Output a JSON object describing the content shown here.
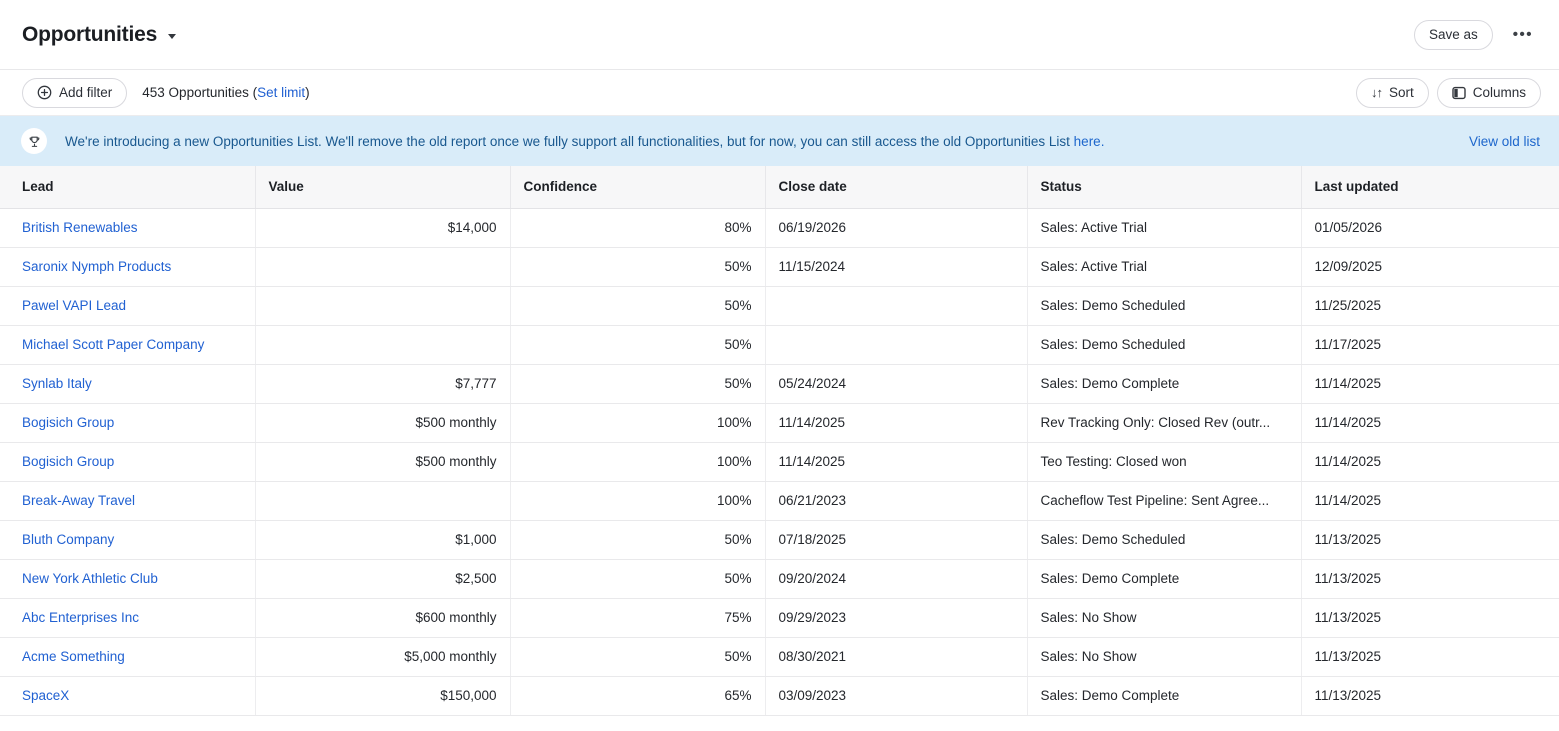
{
  "header": {
    "title": "Opportunities",
    "save_as_label": "Save as",
    "more_label": "•••"
  },
  "toolbar": {
    "add_filter_label": "Add filter",
    "count_prefix": "453 Opportunities (",
    "set_limit_label": "Set limit",
    "count_suffix": ")",
    "sort_label": "Sort",
    "sort_glyph": "↓↑",
    "columns_label": "Columns"
  },
  "banner": {
    "message_prefix": "We're introducing a new Opportunities List. We'll remove the old report once we fully support all functionalities, but for now, you can still access the old Opportunities List ",
    "inline_link_text": "here.",
    "action_link_text": "View old list"
  },
  "icons": {
    "title_caret": "chevron-down",
    "more": "ellipsis",
    "add_filter": "plus-circle",
    "sort": "arrows-down-up",
    "columns": "table-columns",
    "banner": "trophy"
  },
  "colors": {
    "link_blue": "#2161d2",
    "banner_bg": "#d9ecf9",
    "banner_text": "#19588f",
    "banner_link": "#1d66cc",
    "table_header_bg": "#f7f7f8",
    "border": "#e9e9eb",
    "text_primary": "#24272c"
  },
  "table": {
    "columns": [
      {
        "label": "Lead",
        "align": "left"
      },
      {
        "label": "Value",
        "align": "right"
      },
      {
        "label": "Confidence",
        "align": "right"
      },
      {
        "label": "Close date",
        "align": "left"
      },
      {
        "label": "Status",
        "align": "left"
      },
      {
        "label": "Last updated",
        "align": "left"
      }
    ],
    "rows": [
      {
        "lead": "British Renewables",
        "value": "$14,000",
        "confidence": "80%",
        "close_date": "06/19/2026",
        "status": "Sales: Active Trial",
        "last_updated": "01/05/2026"
      },
      {
        "lead": "Saronix Nymph Products",
        "value": "",
        "confidence": "50%",
        "close_date": "11/15/2024",
        "status": "Sales: Active Trial",
        "last_updated": "12/09/2025"
      },
      {
        "lead": "Pawel VAPI Lead",
        "value": "",
        "confidence": "50%",
        "close_date": "",
        "status": "Sales: Demo Scheduled",
        "last_updated": "11/25/2025"
      },
      {
        "lead": "Michael Scott Paper Company",
        "value": "",
        "confidence": "50%",
        "close_date": "",
        "status": "Sales: Demo Scheduled",
        "last_updated": "11/17/2025"
      },
      {
        "lead": "Synlab Italy",
        "value": "$7,777",
        "confidence": "50%",
        "close_date": "05/24/2024",
        "status": "Sales: Demo Complete",
        "last_updated": "11/14/2025"
      },
      {
        "lead": "Bogisich Group",
        "value": "$500 monthly",
        "confidence": "100%",
        "close_date": "11/14/2025",
        "status": "Rev Tracking Only: Closed Rev (outr...",
        "last_updated": "11/14/2025"
      },
      {
        "lead": "Bogisich Group",
        "value": "$500 monthly",
        "confidence": "100%",
        "close_date": "11/14/2025",
        "status": "Teo Testing: Closed won",
        "last_updated": "11/14/2025"
      },
      {
        "lead": "Break-Away Travel",
        "value": "",
        "confidence": "100%",
        "close_date": "06/21/2023",
        "status": "Cacheflow Test Pipeline: Sent Agree...",
        "last_updated": "11/14/2025"
      },
      {
        "lead": "Bluth Company",
        "value": "$1,000",
        "confidence": "50%",
        "close_date": "07/18/2025",
        "status": "Sales: Demo Scheduled",
        "last_updated": "11/13/2025"
      },
      {
        "lead": "New York Athletic Club",
        "value": "$2,500",
        "confidence": "50%",
        "close_date": "09/20/2024",
        "status": "Sales: Demo Complete",
        "last_updated": "11/13/2025"
      },
      {
        "lead": "Abc Enterprises Inc",
        "value": "$600 monthly",
        "confidence": "75%",
        "close_date": "09/29/2023",
        "status": "Sales: No Show",
        "last_updated": "11/13/2025"
      },
      {
        "lead": "Acme Something",
        "value": "$5,000 monthly",
        "confidence": "50%",
        "close_date": "08/30/2021",
        "status": "Sales: No Show",
        "last_updated": "11/13/2025"
      },
      {
        "lead": "SpaceX",
        "value": "$150,000",
        "confidence": "65%",
        "close_date": "03/09/2023",
        "status": "Sales: Demo Complete",
        "last_updated": "11/13/2025"
      }
    ]
  }
}
